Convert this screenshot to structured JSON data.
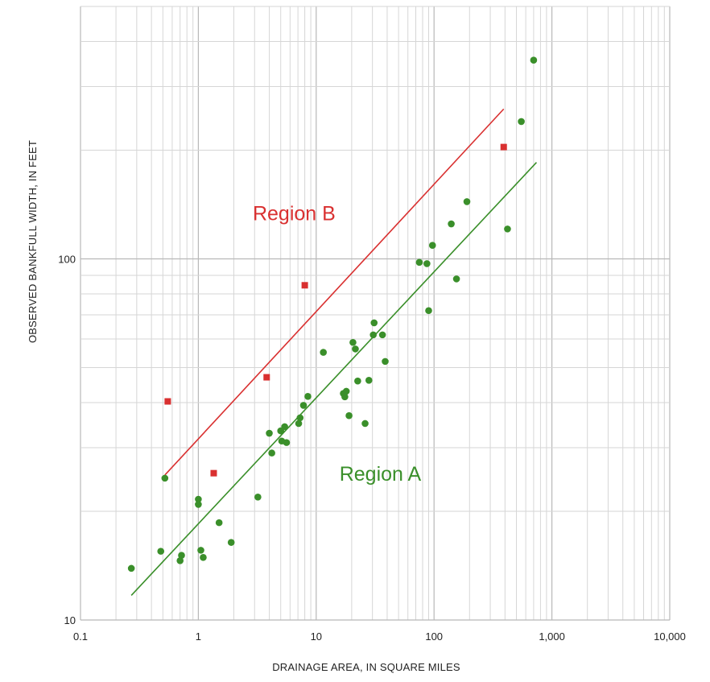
{
  "chart_data": {
    "type": "scatter",
    "title": "",
    "xlabel": "DRAINAGE AREA, IN SQUARE MILES",
    "ylabel": "OBSERVED BANKFULL WIDTH, IN FEET",
    "x_scale": "log",
    "y_scale": "log",
    "xlim": [
      0.1,
      10000
    ],
    "ylim": [
      10,
      500
    ],
    "x_ticks": [
      {
        "value": 0.1,
        "label": "0.1"
      },
      {
        "value": 1,
        "label": "1"
      },
      {
        "value": 10,
        "label": "10"
      },
      {
        "value": 100,
        "label": "100"
      },
      {
        "value": 1000,
        "label": "1,000"
      },
      {
        "value": 10000,
        "label": "10,000"
      }
    ],
    "y_ticks": [
      {
        "value": 10,
        "label": "10"
      },
      {
        "value": 100,
        "label": "100"
      }
    ],
    "grid": true,
    "series": [
      {
        "name": "Region A",
        "color": "#3a8f2a",
        "marker": "circle",
        "points": [
          [
            0.27,
            13.9
          ],
          [
            0.48,
            15.5
          ],
          [
            0.52,
            24.7
          ],
          [
            0.7,
            14.6
          ],
          [
            0.72,
            15.1
          ],
          [
            1.0,
            20.9
          ],
          [
            1.0,
            21.6
          ],
          [
            1.05,
            15.6
          ],
          [
            1.1,
            14.9
          ],
          [
            1.5,
            18.6
          ],
          [
            1.9,
            16.4
          ],
          [
            3.2,
            21.9
          ],
          [
            4.0,
            32.9
          ],
          [
            4.2,
            29.0
          ],
          [
            5.0,
            33.4
          ],
          [
            5.1,
            31.3
          ],
          [
            5.4,
            34.3
          ],
          [
            5.6,
            31.0
          ],
          [
            7.1,
            35.0
          ],
          [
            7.3,
            36.3
          ],
          [
            7.8,
            39.3
          ],
          [
            8.5,
            41.6
          ],
          [
            11.5,
            55.1
          ],
          [
            17.0,
            42.4
          ],
          [
            17.5,
            41.5
          ],
          [
            18.0,
            43.0
          ],
          [
            19.0,
            36.8
          ],
          [
            20.5,
            58.7
          ],
          [
            21.5,
            56.3
          ],
          [
            22.5,
            45.9
          ],
          [
            26.0,
            35.0
          ],
          [
            28.0,
            46.1
          ],
          [
            30.5,
            61.6
          ],
          [
            31.0,
            66.5
          ],
          [
            36.5,
            61.6
          ],
          [
            38.5,
            52.0
          ],
          [
            75.0,
            97.8
          ],
          [
            87.0,
            97.0
          ],
          [
            90.0,
            71.9
          ],
          [
            97.0,
            109.0
          ],
          [
            140.0,
            125.0
          ],
          [
            155.0,
            88.0
          ],
          [
            190.0,
            144.0
          ],
          [
            420.0,
            121.0
          ],
          [
            550.0,
            240.0
          ],
          [
            700.0,
            355.0
          ]
        ]
      },
      {
        "name": "Region B",
        "color": "#d93030",
        "marker": "square",
        "points": [
          [
            0.55,
            40.3
          ],
          [
            1.35,
            25.5
          ],
          [
            3.8,
            47.0
          ],
          [
            8.0,
            84.5
          ],
          [
            390.0,
            204.0
          ]
        ]
      }
    ],
    "fit_lines": [
      {
        "series": "Region A",
        "color": "#3a8f2a",
        "x": [
          0.27,
          740.0
        ],
        "y": [
          11.7,
          185.0
        ]
      },
      {
        "series": "Region B",
        "color": "#d93030",
        "x": [
          0.52,
          390.0
        ],
        "y": [
          25.2,
          260.0
        ]
      }
    ],
    "annotations": [
      {
        "text": "Region B",
        "color": "#d93030",
        "x": 6.5,
        "y": 128
      },
      {
        "text": "Region A",
        "color": "#3a8f2a",
        "x": 35,
        "y": 24.3
      }
    ]
  }
}
